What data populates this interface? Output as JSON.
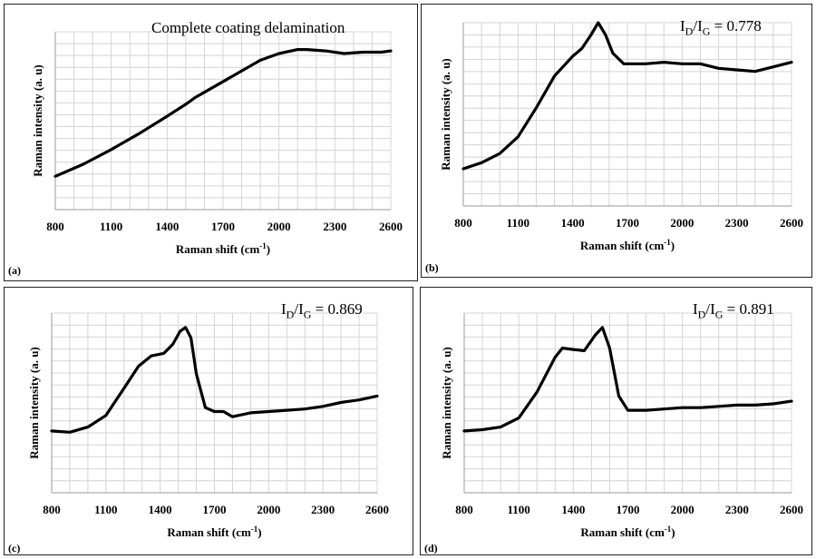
{
  "chart_data": [
    {
      "id": "a",
      "type": "line",
      "panel_label": "(a)",
      "annotation": "Complete coating delamination",
      "annotation_html": false,
      "xlabel": "Raman shift (cm",
      "xlabel_sup": "-1",
      "xlabel_tail": ")",
      "ylabel": "Raman intensity (a. u)",
      "xlim": [
        800,
        2600
      ],
      "xticks": [
        "800",
        "1100",
        "1400",
        "1700",
        "2000",
        "2300",
        "2600"
      ],
      "ylim": [
        0,
        1
      ],
      "grid": true,
      "series": [
        {
          "x": [
            800,
            950,
            1100,
            1250,
            1400,
            1500,
            1550,
            1650,
            1800,
            1900,
            2000,
            2100,
            2150,
            2250,
            2350,
            2450,
            2550,
            2600
          ],
          "y": [
            0.05,
            0.14,
            0.25,
            0.37,
            0.5,
            0.59,
            0.64,
            0.72,
            0.84,
            0.92,
            0.97,
            1.0,
            1.0,
            0.99,
            0.97,
            0.98,
            0.98,
            0.99
          ]
        }
      ]
    },
    {
      "id": "b",
      "type": "line",
      "panel_label": "(b)",
      "annotation_main": "I",
      "annotation_sub1": "D",
      "annotation_mid": "/I",
      "annotation_sub2": "G",
      "annotation_tail": " = 0.778",
      "xlabel": "Raman shift (cm",
      "xlabel_sup": "-1",
      "xlabel_tail": ")",
      "ylabel": "Raman intensity (a. u)",
      "xlim": [
        800,
        2600
      ],
      "xticks": [
        "800",
        "1100",
        "1400",
        "1700",
        "2000",
        "2300",
        "2600"
      ],
      "ylim": [
        0,
        1
      ],
      "grid": true,
      "series": [
        {
          "x": [
            800,
            900,
            1000,
            1100,
            1200,
            1300,
            1400,
            1450,
            1500,
            1540,
            1580,
            1620,
            1680,
            1800,
            1900,
            2000,
            2100,
            2200,
            2300,
            2400,
            2500,
            2600
          ],
          "y": [
            0.1,
            0.14,
            0.2,
            0.31,
            0.5,
            0.71,
            0.84,
            0.89,
            0.98,
            1.06,
            0.98,
            0.86,
            0.79,
            0.79,
            0.8,
            0.79,
            0.79,
            0.76,
            0.75,
            0.74,
            0.77,
            0.8
          ]
        }
      ]
    },
    {
      "id": "c",
      "type": "line",
      "panel_label": "(c)",
      "annotation_main": "I",
      "annotation_sub1": "D",
      "annotation_mid": "/I",
      "annotation_sub2": "G",
      "annotation_tail": " = 0.869",
      "xlabel": "Raman shift (cm",
      "xlabel_sup": "-1",
      "xlabel_tail": ")",
      "ylabel": "Raman intensity (a. u)",
      "xlim": [
        800,
        2600
      ],
      "xticks": [
        "800",
        "1100",
        "1400",
        "1700",
        "2000",
        "2300",
        "2600"
      ],
      "ylim": [
        0,
        1
      ],
      "grid": true,
      "series": [
        {
          "x": [
            800,
            900,
            1000,
            1100,
            1200,
            1280,
            1350,
            1420,
            1470,
            1510,
            1540,
            1570,
            1600,
            1650,
            1700,
            1750,
            1800,
            1900,
            2000,
            2100,
            2200,
            2300,
            2400,
            2500,
            2600
          ],
          "y": [
            0.2,
            0.19,
            0.23,
            0.32,
            0.53,
            0.7,
            0.78,
            0.8,
            0.87,
            0.97,
            1.0,
            0.92,
            0.64,
            0.38,
            0.35,
            0.35,
            0.31,
            0.34,
            0.35,
            0.36,
            0.37,
            0.39,
            0.42,
            0.44,
            0.47
          ]
        }
      ]
    },
    {
      "id": "d",
      "type": "line",
      "panel_label": "(d)",
      "annotation_main": "I",
      "annotation_sub1": "D",
      "annotation_mid": "/I",
      "annotation_sub2": "G",
      "annotation_tail": " = 0.891",
      "xlabel": "Raman shift (cm",
      "xlabel_sup": "-1",
      "xlabel_tail": ")",
      "ylabel": "Raman intensity (a. u)",
      "xlim": [
        800,
        2600
      ],
      "xticks": [
        "800",
        "1100",
        "1400",
        "1700",
        "2000",
        "2300",
        "2600"
      ],
      "ylim": [
        0,
        1
      ],
      "grid": true,
      "series": [
        {
          "x": [
            800,
            900,
            1000,
            1100,
            1200,
            1300,
            1340,
            1400,
            1460,
            1520,
            1560,
            1600,
            1650,
            1700,
            1800,
            1900,
            2000,
            2100,
            2200,
            2300,
            2400,
            2500,
            2600
          ],
          "y": [
            0.2,
            0.21,
            0.23,
            0.3,
            0.5,
            0.77,
            0.84,
            0.83,
            0.82,
            0.94,
            1.0,
            0.84,
            0.47,
            0.36,
            0.36,
            0.37,
            0.38,
            0.38,
            0.39,
            0.4,
            0.4,
            0.41,
            0.43
          ]
        }
      ]
    }
  ]
}
